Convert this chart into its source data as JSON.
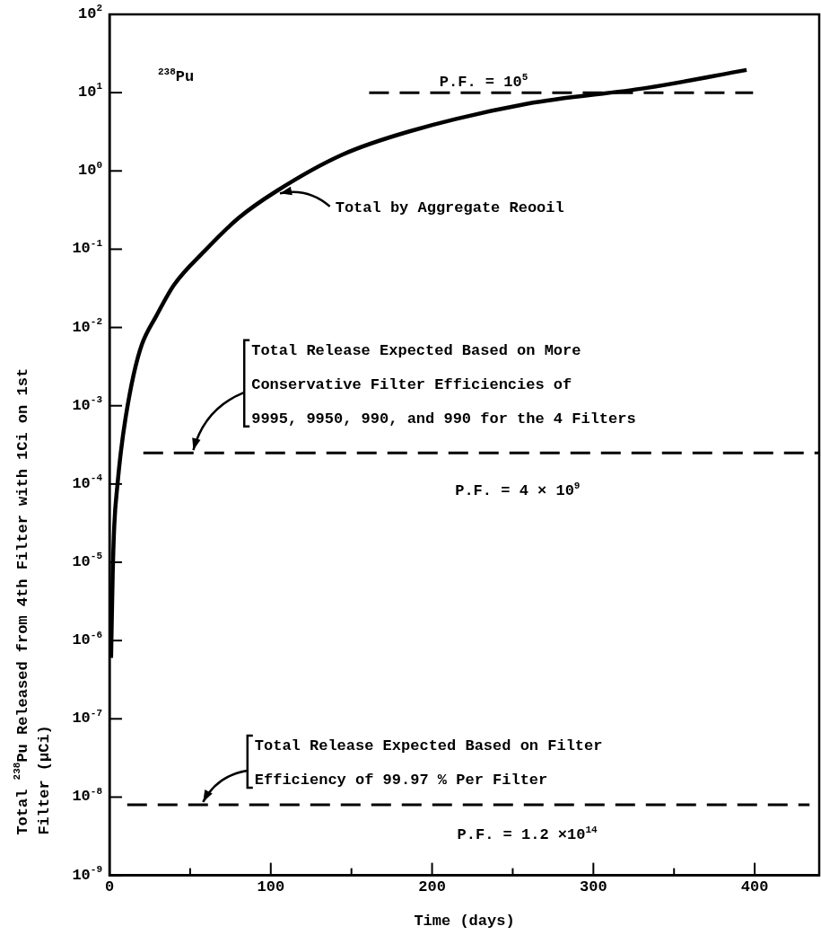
{
  "chart_data": {
    "type": "line",
    "xlabel": "Time (days)",
    "ylabel": "Total $^{238}$Pu Released from 4th Filter with 1Ci on 1st\nFilter (µCi)",
    "xlim": [
      0,
      440
    ],
    "xticks": [
      0,
      100,
      200,
      300,
      400,
      {
        "value": 50,
        "label": null
      },
      {
        "value": 150,
        "label": null
      },
      {
        "value": 250,
        "label": null
      },
      {
        "value": 350,
        "label": null
      }
    ],
    "ylim": [
      1e-09,
      100
    ],
    "yticks": [
      {
        "value": 1e-09,
        "label": "10$^{-9}$"
      },
      {
        "value": 1e-08,
        "label": "10$^{-8}$"
      },
      {
        "value": 1e-07,
        "label": "10$^{-7}$"
      },
      {
        "value": 1e-06,
        "label": "10$^{-6}$"
      },
      {
        "value": 1e-05,
        "label": "10$^{-5}$"
      },
      {
        "value": 0.0001,
        "label": "10$^{-4}$"
      },
      {
        "value": 0.001,
        "label": "10$^{-3}$"
      },
      {
        "value": 0.01,
        "label": "10$^{-2}$"
      },
      {
        "value": 0.1,
        "label": "10$^{-1}$"
      },
      {
        "value": 1,
        "label": "10$^{0}$"
      },
      {
        "value": 10,
        "label": "10$^{1}$"
      },
      {
        "value": 100,
        "label": "10$^{2}$"
      }
    ],
    "log": true,
    "grid": false,
    "legend": false,
    "marker": "none",
    "series": [
      {
        "type": "line",
        "line_style": "solid",
        "color": "#000000",
        "x": [
          1,
          2,
          3,
          5,
          7,
          10,
          15,
          20,
          29,
          40,
          59,
          80,
          104,
          144,
          186,
          259,
          333,
          395
        ],
        "values": [
          6e-07,
          7e-06,
          3e-05,
          0.0001,
          0.00025,
          0.0007,
          0.0025,
          0.006,
          0.014,
          0.035,
          0.095,
          0.25,
          0.56,
          1.6,
          3.2,
          7.2,
          11.5,
          19.5
        ]
      },
      {
        "type": "line",
        "line_style": "dashed",
        "color": "#000000",
        "x": [
          161,
          399
        ],
        "values": [
          10,
          10
        ]
      },
      {
        "type": "line",
        "line_style": "dashed",
        "color": "#000000",
        "x": [
          21,
          440
        ],
        "values": [
          0.00025,
          0.00025
        ]
      },
      {
        "type": "line",
        "line_style": "dashed",
        "color": "#000000",
        "x": [
          11,
          434
        ],
        "values": [
          8e-09,
          8e-09
        ]
      }
    ],
    "annotations": [
      "$^{238}$Pu",
      "P.F. = 10$^{5}$",
      {
        "text": "Total by Aggregate Reooil",
        "x": 104,
        "y": 0.56
      },
      {
        "text": "Total Release Expected Based on More\nConservative Filter Efficiencies of\n9995, 9950, 990, and 990 for the 4 Filters",
        "x": 52,
        "y": 0.00025
      },
      "P.F. = 4 × 10$^{9}$",
      {
        "text": "Total Release Expected Based on Filter\nEfficiency of 99.97 % Per Filter",
        "x": 58,
        "y": 8e-09
      },
      "P.F. = 1.2 ×10$^{14}$"
    ]
  }
}
